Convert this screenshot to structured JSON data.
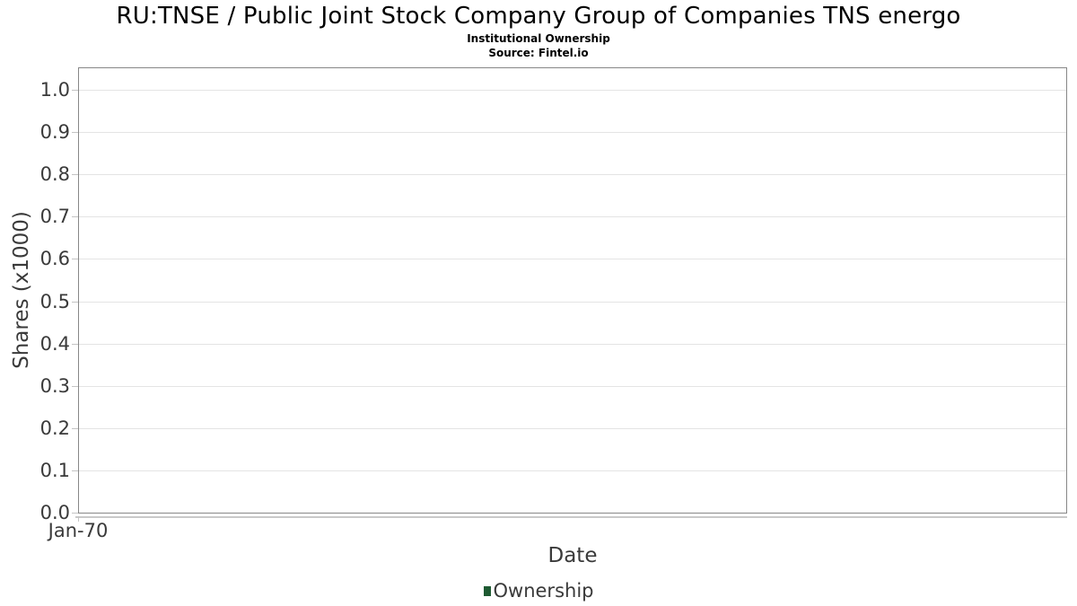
{
  "header": {
    "title": "RU:TNSE / Public Joint Stock Company Group of Companies TNS energo",
    "subtitle": "Institutional Ownership",
    "source": "Source: Fintel.io"
  },
  "chart_data": {
    "type": "line",
    "title": "RU:TNSE / Public Joint Stock Company Group of Companies TNS energo",
    "subtitle": "Institutional Ownership",
    "source": "Source: Fintel.io",
    "xlabel": "Date",
    "ylabel": "Shares (x1000)",
    "x_tick_labels": [
      "Jan-70"
    ],
    "y_ticks": [
      0.0,
      0.1,
      0.2,
      0.3,
      0.4,
      0.5,
      0.6,
      0.7,
      0.8,
      0.9,
      1.0
    ],
    "y_tick_labels": [
      "0.0",
      "0.1",
      "0.2",
      "0.3",
      "0.4",
      "0.5",
      "0.6",
      "0.7",
      "0.8",
      "0.9",
      "1.0"
    ],
    "ylim": [
      0.0,
      1.05
    ],
    "grid": "horizontal",
    "legend_position": "bottom-center",
    "series": [
      {
        "name": "Ownership",
        "color": "#1e5a32",
        "x": [],
        "y": []
      }
    ]
  },
  "colors": {
    "background": "#ffffff",
    "plot_border": "#878787",
    "gridline": "#e4e4e4",
    "axis_line": "#c9c9c9",
    "tick_mark": "#c4c4c4",
    "heading_text": "#000000",
    "axis_text": "#3a3a3a",
    "legend_marker_green": "#1e5a32"
  }
}
